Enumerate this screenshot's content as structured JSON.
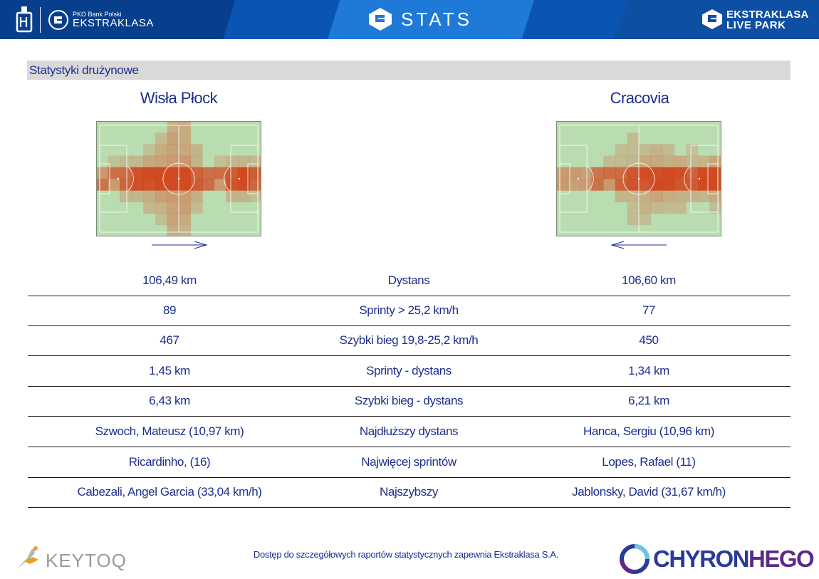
{
  "header": {
    "pko_label": "PKO Bank Polski",
    "ekstraklasa_label": "EKSTRAKLASA",
    "stats_label": "STATS",
    "livepark_line1": "EKSTRAKLASA",
    "livepark_line2": "LIVE PARK",
    "colors": {
      "header_bg": "#0a55b3",
      "accent_dark": "#083f8c",
      "accent_light": "#1e7ad6"
    }
  },
  "section": {
    "title": "Statystyki drużynowe"
  },
  "teams": {
    "home": {
      "name": "Wisła Płock",
      "direction_icon": "arrow-right-icon"
    },
    "away": {
      "name": "Cracovia",
      "direction_icon": "arrow-left-icon"
    }
  },
  "stats": [
    {
      "home": "106,49 km",
      "label": "Dystans",
      "away": "106,60 km"
    },
    {
      "home": "89",
      "label": "Sprinty > 25,2 km/h",
      "away": "77"
    },
    {
      "home": "467",
      "label": "Szybki bieg 19,8-25,2 km/h",
      "away": "450"
    },
    {
      "home": "1,45 km",
      "label": "Sprinty - dystans",
      "away": "1,34 km"
    },
    {
      "home": "6,43 km",
      "label": "Szybki bieg - dystans",
      "away": "6,21 km"
    },
    {
      "home": "Szwoch, Mateusz (10,97 km)",
      "label": "Najdłuższy dystans",
      "away": "Hanca, Sergiu (10,96 km)"
    },
    {
      "home": "Ricardinho,  (16)",
      "label": "Najwięcej sprintów",
      "away": "Lopes, Rafael (11)"
    },
    {
      "home": "Cabezali, Angel Garcia (33,04 km/h)",
      "label": "Najszybszy",
      "away": "Jablonsky, David (31,67 km/h)"
    }
  ],
  "footer": {
    "note": "Dostęp do szczegółowych raportów statystycznych zapewnia Ekstraklasa S.A.",
    "keytoq_label": "KEYTOQ",
    "chyron_part1": "CHYRON",
    "chyron_part2": "HEGO",
    "colors": {
      "chyron1": "#2a3a9a",
      "chyron2": "#5a2a8a",
      "text": "#1b2d8f"
    }
  }
}
